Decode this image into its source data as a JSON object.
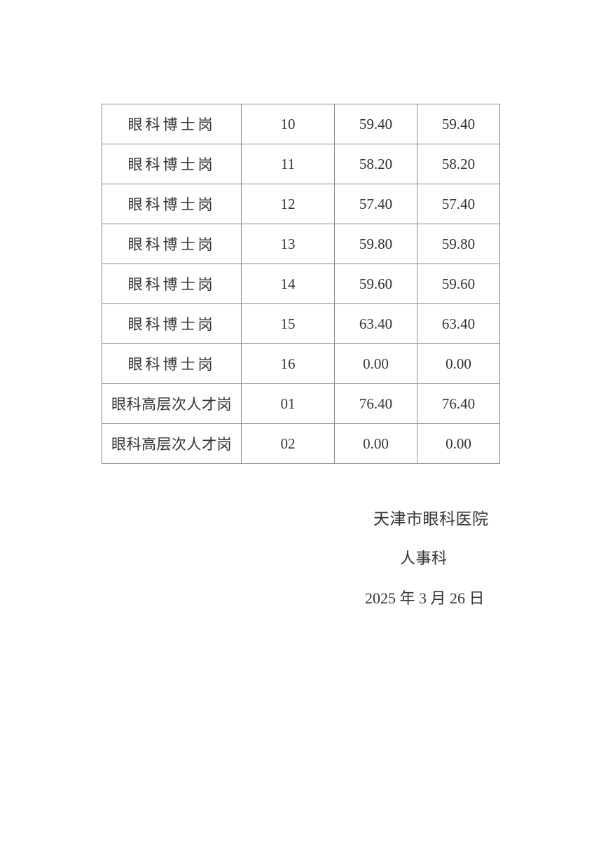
{
  "page": {
    "background_color": "#ffffff",
    "text_color": "#333333",
    "table_border_color": "#8c8c8c"
  },
  "table": {
    "rows": [
      {
        "position": "眼科博士岗",
        "code": "10",
        "score1": "59.40",
        "score2": "59.40"
      },
      {
        "position": "眼科博士岗",
        "code": "11",
        "score1": "58.20",
        "score2": "58.20"
      },
      {
        "position": "眼科博士岗",
        "code": "12",
        "score1": "57.40",
        "score2": "57.40"
      },
      {
        "position": "眼科博士岗",
        "code": "13",
        "score1": "59.80",
        "score2": "59.80"
      },
      {
        "position": "眼科博士岗",
        "code": "14",
        "score1": "59.60",
        "score2": "59.60"
      },
      {
        "position": "眼科博士岗",
        "code": "15",
        "score1": "63.40",
        "score2": "63.40"
      },
      {
        "position": "眼科博士岗",
        "code": "16",
        "score1": "0.00",
        "score2": "0.00"
      },
      {
        "position": "眼科高层次人才岗",
        "code": "01",
        "score1": "76.40",
        "score2": "76.40"
      },
      {
        "position": "眼科高层次人才岗",
        "code": "02",
        "score1": "0.00",
        "score2": "0.00"
      }
    ]
  },
  "footer": {
    "organization": "天津市眼科医院",
    "department": "人事科",
    "date": "2025 年 3 月 26 日"
  }
}
